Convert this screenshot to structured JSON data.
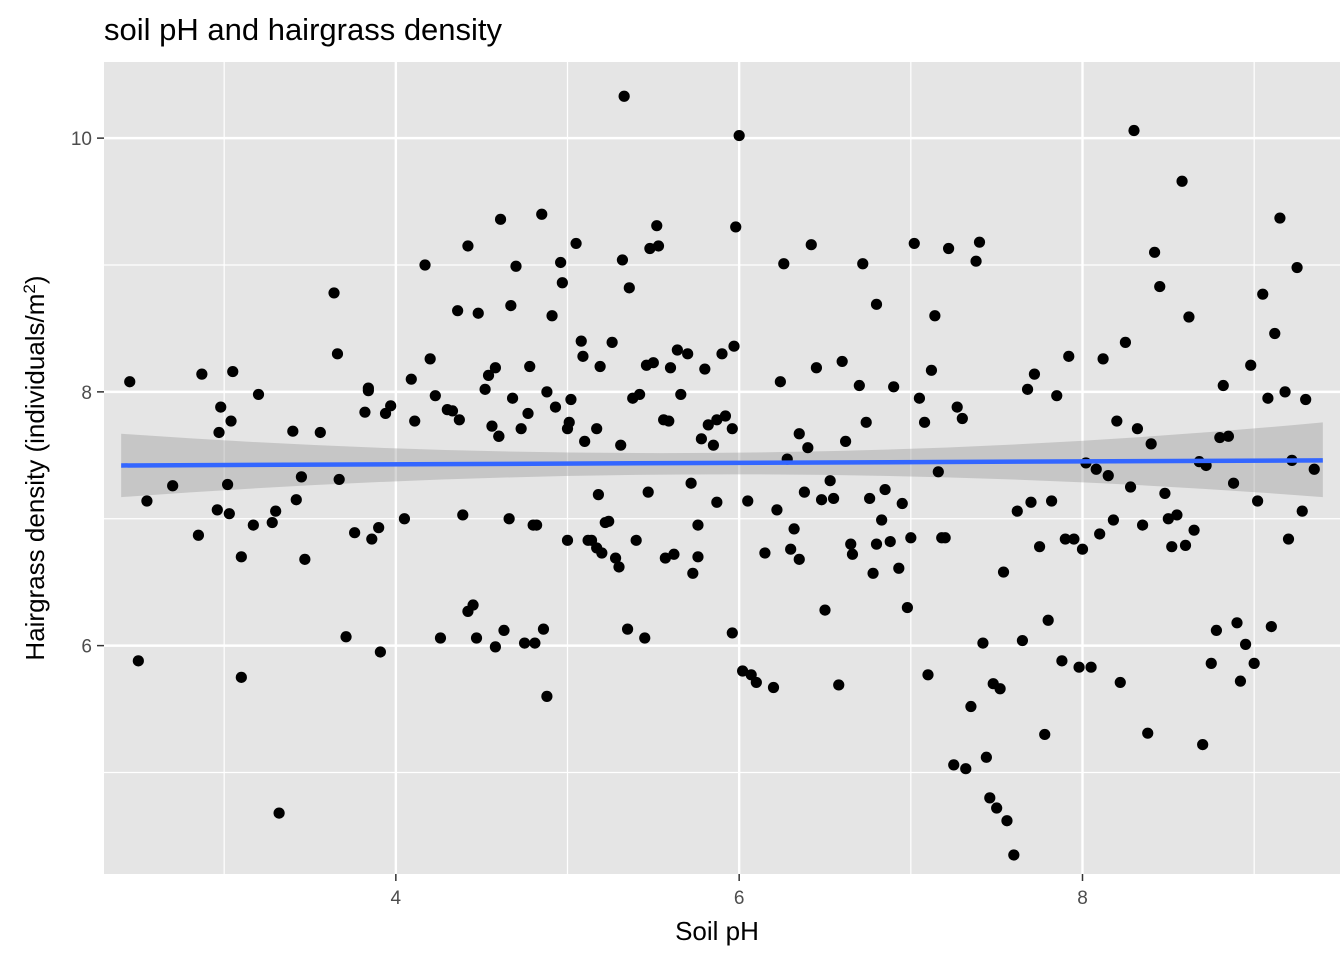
{
  "chart_data": {
    "type": "scatter",
    "title": "soil pH and hairgrass density",
    "xlabel": "Soil pH",
    "ylabel": "Hairgrass density (individuals/m²)",
    "ylabel_base": "Hairgrass density (individuals/m",
    "ylabel_sup": "2",
    "ylabel_end": ")",
    "xlim": [
      2.3,
      9.5
    ],
    "ylim": [
      4.2,
      10.6
    ],
    "x_ticks": [
      4,
      6,
      8
    ],
    "x_tick_labels": [
      "4",
      "6",
      "8"
    ],
    "x_minor_ticks": [
      3,
      5,
      7,
      9
    ],
    "y_ticks": [
      6,
      8,
      10
    ],
    "y_tick_labels": [
      "6",
      "8",
      "10"
    ],
    "y_minor_ticks": [
      5,
      7,
      9
    ],
    "grid": true,
    "legend": "none",
    "colors": {
      "panel_background": "#E5E5E5",
      "grid": "#FFFFFF",
      "points": "#000000",
      "trend_line": "#3366FF",
      "confidence_band": "#999999"
    },
    "trend": {
      "method": "linear fit with 95% confidence band",
      "x_start": 2.4,
      "x_end": 9.4,
      "y_start": 7.42,
      "y_end": 7.46,
      "band_lower_start": 7.17,
      "band_upper_start": 7.67,
      "band_lower_mid": 7.35,
      "band_upper_mid": 7.52,
      "band_x_mid": 6.0,
      "band_lower_end": 7.17,
      "band_upper_end": 7.76
    },
    "points": [
      [
        2.45,
        8.08
      ],
      [
        2.5,
        5.88
      ],
      [
        2.55,
        7.14
      ],
      [
        2.7,
        7.26
      ],
      [
        2.85,
        6.87
      ],
      [
        2.87,
        8.14
      ],
      [
        2.96,
        7.07
      ],
      [
        2.97,
        7.68
      ],
      [
        2.98,
        7.88
      ],
      [
        3.02,
        7.27
      ],
      [
        3.04,
        7.77
      ],
      [
        3.05,
        8.16
      ],
      [
        3.03,
        7.04
      ],
      [
        3.1,
        5.75
      ],
      [
        3.1,
        6.7
      ],
      [
        3.17,
        6.95
      ],
      [
        3.2,
        7.98
      ],
      [
        3.28,
        6.97
      ],
      [
        3.3,
        7.06
      ],
      [
        3.32,
        4.68
      ],
      [
        3.4,
        7.69
      ],
      [
        3.42,
        7.15
      ],
      [
        3.45,
        7.33
      ],
      [
        3.47,
        6.68
      ],
      [
        3.56,
        7.68
      ],
      [
        3.64,
        8.78
      ],
      [
        3.66,
        8.3
      ],
      [
        3.67,
        7.31
      ],
      [
        3.71,
        6.07
      ],
      [
        3.76,
        6.89
      ],
      [
        3.82,
        7.84
      ],
      [
        3.84,
        8.03
      ],
      [
        3.84,
        8.01
      ],
      [
        3.86,
        6.84
      ],
      [
        3.9,
        6.93
      ],
      [
        3.91,
        5.95
      ],
      [
        3.94,
        7.83
      ],
      [
        3.97,
        7.89
      ],
      [
        4.05,
        7.0
      ],
      [
        4.09,
        8.1
      ],
      [
        4.11,
        7.77
      ],
      [
        4.17,
        9.0
      ],
      [
        4.2,
        8.26
      ],
      [
        4.23,
        7.97
      ],
      [
        4.26,
        6.06
      ],
      [
        4.3,
        7.86
      ],
      [
        4.33,
        7.85
      ],
      [
        4.36,
        8.64
      ],
      [
        4.37,
        7.78
      ],
      [
        4.39,
        7.03
      ],
      [
        4.42,
        9.15
      ],
      [
        4.42,
        6.27
      ],
      [
        4.45,
        6.32
      ],
      [
        4.47,
        6.06
      ],
      [
        4.48,
        8.62
      ],
      [
        4.52,
        8.02
      ],
      [
        4.54,
        8.13
      ],
      [
        4.56,
        7.73
      ],
      [
        4.58,
        5.99
      ],
      [
        4.58,
        8.19
      ],
      [
        4.6,
        7.65
      ],
      [
        4.6,
        7.65
      ],
      [
        4.61,
        9.36
      ],
      [
        4.63,
        6.12
      ],
      [
        4.66,
        7.0
      ],
      [
        4.67,
        8.68
      ],
      [
        4.68,
        7.95
      ],
      [
        4.7,
        8.99
      ],
      [
        4.73,
        7.71
      ],
      [
        4.75,
        6.02
      ],
      [
        4.77,
        7.83
      ],
      [
        4.78,
        8.2
      ],
      [
        4.8,
        6.95
      ],
      [
        4.81,
        6.02
      ],
      [
        4.82,
        6.95
      ],
      [
        4.85,
        9.4
      ],
      [
        4.86,
        6.13
      ],
      [
        4.88,
        5.6
      ],
      [
        4.88,
        8.0
      ],
      [
        4.91,
        8.6
      ],
      [
        4.93,
        7.88
      ],
      [
        4.96,
        9.02
      ],
      [
        4.97,
        8.86
      ],
      [
        5.0,
        7.71
      ],
      [
        5.0,
        6.83
      ],
      [
        5.01,
        7.76
      ],
      [
        5.02,
        7.94
      ],
      [
        5.05,
        9.17
      ],
      [
        5.08,
        8.4
      ],
      [
        5.09,
        8.28
      ],
      [
        5.1,
        7.61
      ],
      [
        5.12,
        6.83
      ],
      [
        5.14,
        6.83
      ],
      [
        5.17,
        7.71
      ],
      [
        5.17,
        6.77
      ],
      [
        5.18,
        7.19
      ],
      [
        5.19,
        8.2
      ],
      [
        5.2,
        6.73
      ],
      [
        5.22,
        6.97
      ],
      [
        5.24,
        6.98
      ],
      [
        5.26,
        8.39
      ],
      [
        5.28,
        6.69
      ],
      [
        5.3,
        6.62
      ],
      [
        5.31,
        7.58
      ],
      [
        5.32,
        9.04
      ],
      [
        5.33,
        10.33
      ],
      [
        5.35,
        6.13
      ],
      [
        5.36,
        8.82
      ],
      [
        5.38,
        7.95
      ],
      [
        5.4,
        6.83
      ],
      [
        5.42,
        7.98
      ],
      [
        5.45,
        6.06
      ],
      [
        5.46,
        8.21
      ],
      [
        5.47,
        7.21
      ],
      [
        5.48,
        9.13
      ],
      [
        5.5,
        8.23
      ],
      [
        5.52,
        9.31
      ],
      [
        5.53,
        9.15
      ],
      [
        5.56,
        7.78
      ],
      [
        5.57,
        6.69
      ],
      [
        5.59,
        7.77
      ],
      [
        5.6,
        8.19
      ],
      [
        5.62,
        6.72
      ],
      [
        5.64,
        8.33
      ],
      [
        5.66,
        7.98
      ],
      [
        5.7,
        8.3
      ],
      [
        5.72,
        7.28
      ],
      [
        5.73,
        6.57
      ],
      [
        5.76,
        6.95
      ],
      [
        5.76,
        6.7
      ],
      [
        5.78,
        7.63
      ],
      [
        5.8,
        8.18
      ],
      [
        5.82,
        7.74
      ],
      [
        5.85,
        7.58
      ],
      [
        5.87,
        7.78
      ],
      [
        5.87,
        7.13
      ],
      [
        5.9,
        8.3
      ],
      [
        5.92,
        7.81
      ],
      [
        5.96,
        7.71
      ],
      [
        5.96,
        6.1
      ],
      [
        5.97,
        8.36
      ],
      [
        5.98,
        9.3
      ],
      [
        6.0,
        10.02
      ],
      [
        6.02,
        5.8
      ],
      [
        6.05,
        7.14
      ],
      [
        6.07,
        5.77
      ],
      [
        6.1,
        5.71
      ],
      [
        6.15,
        6.73
      ],
      [
        6.2,
        5.67
      ],
      [
        6.22,
        7.07
      ],
      [
        6.24,
        8.08
      ],
      [
        6.26,
        9.01
      ],
      [
        6.28,
        7.47
      ],
      [
        6.3,
        6.76
      ],
      [
        6.32,
        6.92
      ],
      [
        6.35,
        7.67
      ],
      [
        6.35,
        6.68
      ],
      [
        6.38,
        7.21
      ],
      [
        6.4,
        7.56
      ],
      [
        6.42,
        9.16
      ],
      [
        6.45,
        8.19
      ],
      [
        6.48,
        7.15
      ],
      [
        6.5,
        6.28
      ],
      [
        6.53,
        7.3
      ],
      [
        6.55,
        7.16
      ],
      [
        6.58,
        5.69
      ],
      [
        6.6,
        8.24
      ],
      [
        6.62,
        7.61
      ],
      [
        6.65,
        6.8
      ],
      [
        6.66,
        6.72
      ],
      [
        6.7,
        8.05
      ],
      [
        6.72,
        9.01
      ],
      [
        6.74,
        7.76
      ],
      [
        6.76,
        7.16
      ],
      [
        6.78,
        6.57
      ],
      [
        6.8,
        6.8
      ],
      [
        6.8,
        8.69
      ],
      [
        6.83,
        6.99
      ],
      [
        6.85,
        7.23
      ],
      [
        6.88,
        6.82
      ],
      [
        6.9,
        8.04
      ],
      [
        6.93,
        6.61
      ],
      [
        6.95,
        7.12
      ],
      [
        6.98,
        6.3
      ],
      [
        7.0,
        6.85
      ],
      [
        7.02,
        9.17
      ],
      [
        7.05,
        7.95
      ],
      [
        7.08,
        7.76
      ],
      [
        7.1,
        5.77
      ],
      [
        7.12,
        8.17
      ],
      [
        7.14,
        8.6
      ],
      [
        7.16,
        7.37
      ],
      [
        7.18,
        6.85
      ],
      [
        7.2,
        6.85
      ],
      [
        7.22,
        9.13
      ],
      [
        7.25,
        5.06
      ],
      [
        7.27,
        7.88
      ],
      [
        7.3,
        7.79
      ],
      [
        7.32,
        5.03
      ],
      [
        7.35,
        5.52
      ],
      [
        7.38,
        9.03
      ],
      [
        7.4,
        9.18
      ],
      [
        7.42,
        6.02
      ],
      [
        7.44,
        5.12
      ],
      [
        7.46,
        4.8
      ],
      [
        7.48,
        5.7
      ],
      [
        7.5,
        4.72
      ],
      [
        7.52,
        5.66
      ],
      [
        7.54,
        6.58
      ],
      [
        7.56,
        4.62
      ],
      [
        7.6,
        4.35
      ],
      [
        7.62,
        7.06
      ],
      [
        7.65,
        6.04
      ],
      [
        7.68,
        8.02
      ],
      [
        7.7,
        7.13
      ],
      [
        7.72,
        8.14
      ],
      [
        7.75,
        6.78
      ],
      [
        7.78,
        5.3
      ],
      [
        7.8,
        6.2
      ],
      [
        7.82,
        7.14
      ],
      [
        7.85,
        7.97
      ],
      [
        7.88,
        5.88
      ],
      [
        7.9,
        6.84
      ],
      [
        7.92,
        8.28
      ],
      [
        7.95,
        6.84
      ],
      [
        7.98,
        5.83
      ],
      [
        8.0,
        6.76
      ],
      [
        8.02,
        7.44
      ],
      [
        8.05,
        5.83
      ],
      [
        8.08,
        7.39
      ],
      [
        8.1,
        6.88
      ],
      [
        8.12,
        8.26
      ],
      [
        8.15,
        7.34
      ],
      [
        8.18,
        6.99
      ],
      [
        8.2,
        7.77
      ],
      [
        8.22,
        5.71
      ],
      [
        8.25,
        8.39
      ],
      [
        8.28,
        7.25
      ],
      [
        8.3,
        10.06
      ],
      [
        8.32,
        7.71
      ],
      [
        8.35,
        6.95
      ],
      [
        8.38,
        5.31
      ],
      [
        8.4,
        7.59
      ],
      [
        8.42,
        9.1
      ],
      [
        8.45,
        8.83
      ],
      [
        8.48,
        7.2
      ],
      [
        8.5,
        7.0
      ],
      [
        8.52,
        6.78
      ],
      [
        8.55,
        7.03
      ],
      [
        8.58,
        9.66
      ],
      [
        8.6,
        6.79
      ],
      [
        8.62,
        8.59
      ],
      [
        8.65,
        6.91
      ],
      [
        8.68,
        7.45
      ],
      [
        8.7,
        5.22
      ],
      [
        8.72,
        7.42
      ],
      [
        8.75,
        5.86
      ],
      [
        8.78,
        6.12
      ],
      [
        8.8,
        7.64
      ],
      [
        8.82,
        8.05
      ],
      [
        8.85,
        7.65
      ],
      [
        8.88,
        7.28
      ],
      [
        8.9,
        6.18
      ],
      [
        8.92,
        5.72
      ],
      [
        8.95,
        6.01
      ],
      [
        8.98,
        8.21
      ],
      [
        9.0,
        5.86
      ],
      [
        9.02,
        7.14
      ],
      [
        9.05,
        8.77
      ],
      [
        9.08,
        7.95
      ],
      [
        9.1,
        6.15
      ],
      [
        9.12,
        8.46
      ],
      [
        9.15,
        9.37
      ],
      [
        9.18,
        8.0
      ],
      [
        9.2,
        6.84
      ],
      [
        9.22,
        7.46
      ],
      [
        9.25,
        8.98
      ],
      [
        9.28,
        7.06
      ],
      [
        9.3,
        7.94
      ],
      [
        9.35,
        7.39
      ]
    ]
  }
}
